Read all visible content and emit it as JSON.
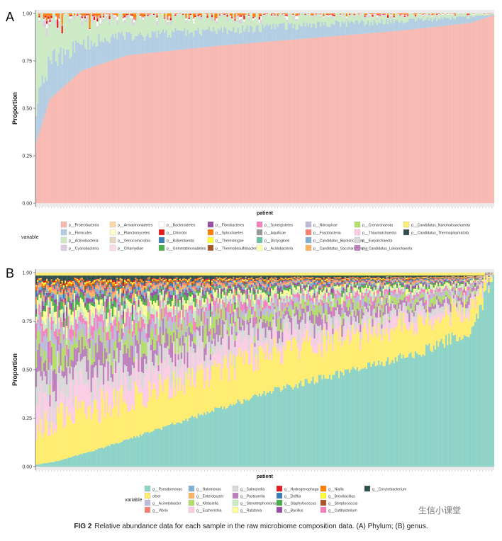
{
  "figure": {
    "caption_label": "FIG 2",
    "caption_text": "Relative abundance data for each sample in the raw microbiome composition data. (A) Phylum; (B) genus.",
    "watermark": "生信小课堂"
  },
  "chart_data": [
    {
      "panel": "A",
      "type": "bar",
      "stacked": true,
      "xlabel": "patient",
      "ylabel": "Proportion",
      "ylim": [
        0,
        1
      ],
      "yticks": [
        "0.00",
        "0.25",
        "0.50",
        "0.75",
        "1.00"
      ],
      "legend_title": "variable",
      "legend_placement": "bottom",
      "n_samples": 300,
      "series_order": [
        "p__Proteobacteria",
        "p__Firmicutes",
        "p__Actinobacteria",
        "p__Cyanobacteria"
      ],
      "profile": {
        "description_free": true,
        "sorted_by": "p__Proteobacteria",
        "anchors": [
          {
            "rank": 0.0,
            "p__Proteobacteria": 0.32,
            "p__Firmicutes": 0.2,
            "p__Actinobacteria": 0.46
          },
          {
            "rank": 0.03,
            "p__Proteobacteria": 0.55,
            "p__Firmicutes": 0.2,
            "p__Actinobacteria": 0.22
          },
          {
            "rank": 0.1,
            "p__Proteobacteria": 0.7,
            "p__Firmicutes": 0.14,
            "p__Actinobacteria": 0.13
          },
          {
            "rank": 0.2,
            "p__Proteobacteria": 0.78,
            "p__Firmicutes": 0.1,
            "p__Actinobacteria": 0.1
          },
          {
            "rank": 0.4,
            "p__Proteobacteria": 0.83,
            "p__Firmicutes": 0.08,
            "p__Actinobacteria": 0.07
          },
          {
            "rank": 0.6,
            "p__Proteobacteria": 0.87,
            "p__Firmicutes": 0.07,
            "p__Actinobacteria": 0.05
          },
          {
            "rank": 0.8,
            "p__Proteobacteria": 0.91,
            "p__Firmicutes": 0.05,
            "p__Actinobacteria": 0.03
          },
          {
            "rank": 0.95,
            "p__Proteobacteria": 0.95,
            "p__Firmicutes": 0.03,
            "p__Actinobacteria": 0.015
          },
          {
            "rank": 1.0,
            "p__Proteobacteria": 0.99,
            "p__Firmicutes": 0.005,
            "p__Actinobacteria": 0.003
          }
        ]
      },
      "colors": {
        "p__Proteobacteria": "#F8B9B2",
        "p__Firmicutes": "#B3CDE3",
        "p__Actinobacteria": "#CCEBC5",
        "p__Cyanobacteria": "#DECBE4",
        "p__Armatimonadetes": "#FED9A6",
        "p__Planctomycetes": "#FFFFCC",
        "p__Verrucomicrobia": "#E5D8BD",
        "p__Chlamydiae": "#FDDAEC",
        "p__Bacteroidetes": "#FFFFFF",
        "p__Chlorobi": "#E41A1C",
        "p__Balneolaeota": "#377EB8",
        "p__Gemmatimonadetes": "#4DAF4A",
        "p__Fibrobacteres": "#984EA3",
        "p__Spirochaetes": "#FF7F00",
        "p__Thermotogae": "#FFFF33",
        "p__Thermodesulfobacteria": "#A65628",
        "p__Synergistetes": "#F781BF",
        "p__Aquificae": "#999999",
        "p__Dictyoglomi": "#66C2A5",
        "p__Acidobacteria": "#FFFFB3",
        "p__Nitrospirae": "#BEBADA",
        "p__Fusobacteria": "#FB8072",
        "p__Candidatus_Bipolaricaulota": "#80B1D3",
        "p__Candidatus_Saccharibacteria": "#FDB462",
        "p__Crenarchaeota": "#B3DE69",
        "p__Thaumarchaeota": "#FCCDE5",
        "p__Euryarchaeota": "#D9D9D9",
        "p__Candidatus_Lokiarchaeota": "#BC80BD",
        "p__Candidatus_Nanohaloarchaeota": "#FFED6F",
        "p__Candidatus_Thermoplasmatota": "#2F4F4F"
      },
      "legend": [
        [
          "p__Proteobacteria",
          "p__Firmicutes",
          "p__Actinobacteria",
          "p__Cyanobacteria"
        ],
        [
          "p__Armatimonadetes",
          "p__Planctomycetes",
          "p__Verrucomicrobia",
          "p__Chlamydiae"
        ],
        [
          "p__Bacteroidetes",
          "p__Chlorobi",
          "p__Balneolaeota",
          "p__Gemmatimonadetes"
        ],
        [
          "p__Fibrobacteres",
          "p__Spirochaetes",
          "p__Thermotogae",
          "p__Thermodesulfobacteria"
        ],
        [
          "p__Synergistetes",
          "p__Aquificae",
          "p__Dictyoglomi",
          "p__Acidobacteria"
        ],
        [
          "p__Nitrospirae",
          "p__Fusobacteria",
          "p__Candidatus_Bipolaricaulota",
          "p__Candidatus_Saccharibacteria"
        ],
        [
          "p__Crenarchaeota",
          "p__Thaumarchaeota",
          "p__Euryarchaeota",
          "p__Candidatus_Lokiarchaeota"
        ],
        [
          "p__Candidatus_Nanohaloarchaeota",
          "p__Candidatus_Thermoplasmatota"
        ]
      ]
    },
    {
      "panel": "B",
      "type": "bar",
      "stacked": true,
      "xlabel": "patient",
      "ylabel": "Proportion",
      "ylim": [
        0,
        1
      ],
      "yticks": [
        "0.00",
        "0.25",
        "0.50",
        "0.75",
        "1.00"
      ],
      "legend_title": "variable",
      "legend_placement": "bottom",
      "n_samples": 300,
      "sorted_by": "g__Pseudomonas",
      "profile": {
        "anchors": [
          {
            "rank": 0.0,
            "g__Pseudomonas": 0.01,
            "other": 0.2
          },
          {
            "rank": 0.05,
            "g__Pseudomonas": 0.03,
            "other": 0.22
          },
          {
            "rank": 0.15,
            "g__Pseudomonas": 0.1,
            "other": 0.22
          },
          {
            "rank": 0.3,
            "g__Pseudomonas": 0.22,
            "other": 0.2
          },
          {
            "rank": 0.5,
            "g__Pseudomonas": 0.38,
            "other": 0.2
          },
          {
            "rank": 0.7,
            "g__Pseudomonas": 0.5,
            "other": 0.17
          },
          {
            "rank": 0.85,
            "g__Pseudomonas": 0.6,
            "other": 0.15
          },
          {
            "rank": 0.95,
            "g__Pseudomonas": 0.7,
            "other": 0.12
          },
          {
            "rank": 1.0,
            "g__Pseudomonas": 0.98,
            "other": 0.01
          }
        ]
      },
      "colors": {
        "g__Pseudomonas": "#8DD3C7",
        "other": "#FFED6F",
        "g__Acinetobacter": "#BEBADA",
        "g__Vibrio": "#FB8072",
        "g__Halomonas": "#80B1D3",
        "g__Enterobacter": "#FDB462",
        "g__Klebsiella": "#B3DE69",
        "g__Escherichia": "#FCCDE5",
        "g__Salmonella": "#D9D9D9",
        "g__Pasteurella": "#BC80BD",
        "g__Stenotrophomonas": "#CCEBC5",
        "g__Ralstonia": "#FFFF99",
        "g__Hydrogenophaga": "#E41A1C",
        "g__Delftia": "#377EB8",
        "g__Staphylococcus": "#4DAF4A",
        "g__Bacillus": "#984EA3",
        "g__Nialla": "#FF7F00",
        "g__Brevibacillus": "#FFFF33",
        "g__Streptococcus": "#A65628",
        "g__Cutibacterium": "#F781BF",
        "g__Corynebacterium": "#2F4F4F"
      },
      "legend": [
        [
          "g__Pseudomonas",
          "other",
          "g__Acinetobacter",
          "g__Vibrio"
        ],
        [
          "g__Halomonas",
          "g__Enterobacter",
          "g__Klebsiella",
          "g__Escherichia"
        ],
        [
          "g__Salmonella",
          "g__Pasteurella",
          "g__Stenotrophomonas",
          "g__Ralstonia"
        ],
        [
          "g__Hydrogenophaga",
          "g__Delftia",
          "g__Staphylococcus",
          "g__Bacillus"
        ],
        [
          "g__Nialla",
          "g__Brevibacillus",
          "g__Streptococcus",
          "g__Cutibacterium"
        ],
        [
          "g__Corynebacterium"
        ]
      ]
    }
  ]
}
